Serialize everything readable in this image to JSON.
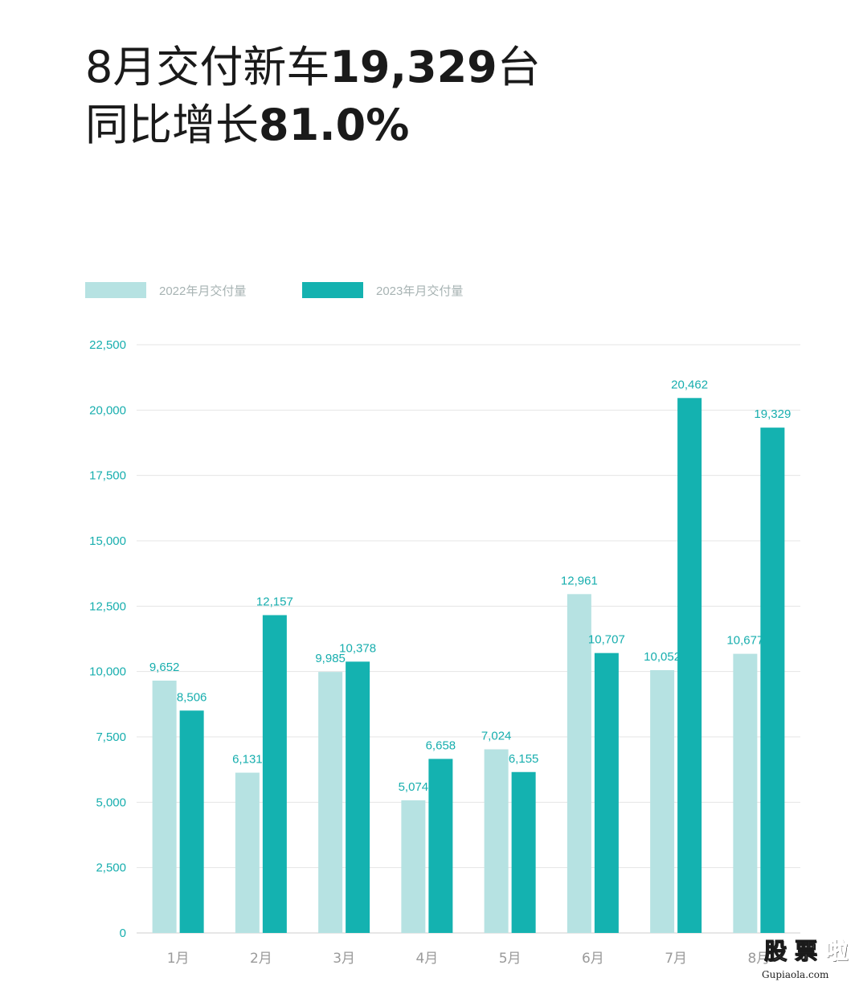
{
  "headline": {
    "line1_prefix": "8月交付新车",
    "line1_number": "19,329",
    "line1_suffix": "台",
    "line2_prefix": "同比增长",
    "line2_number": "81.0%"
  },
  "chart_data": {
    "type": "bar",
    "categories": [
      "1月",
      "2月",
      "3月",
      "4月",
      "5月",
      "6月",
      "7月",
      "8月"
    ],
    "series": [
      {
        "name": "2022年月交付量",
        "values": [
          9652,
          6131,
          9985,
          5074,
          7024,
          12961,
          10052,
          10677
        ],
        "labels": [
          "9,652",
          "6,131",
          "9,985",
          "5,074",
          "7,024",
          "12,961",
          "10,052",
          "10,677"
        ],
        "color": "#b6e2e2"
      },
      {
        "name": "2023年月交付量",
        "values": [
          8506,
          12157,
          10378,
          6658,
          6155,
          10707,
          20462,
          19329
        ],
        "labels": [
          "8,506",
          "12,157",
          "10,378",
          "6,658",
          "6,155",
          "10,707",
          "20,462",
          "19,329"
        ],
        "color": "#14b2b0"
      }
    ],
    "yticks": [
      "0",
      "2,500",
      "5,000",
      "7,500",
      "10,000",
      "12,500",
      "15,000",
      "17,500",
      "20,000",
      "22,500"
    ],
    "ylim": [
      0,
      22500
    ],
    "grid": true,
    "legend": "top-left",
    "colors": {
      "axis_text": "#17aeae",
      "grid": "#e5e5e5",
      "category_text": "#9a9a9a"
    }
  },
  "watermark": {
    "chars": [
      "股",
      "票",
      "啦"
    ],
    "site": "Gupiaola.com"
  }
}
